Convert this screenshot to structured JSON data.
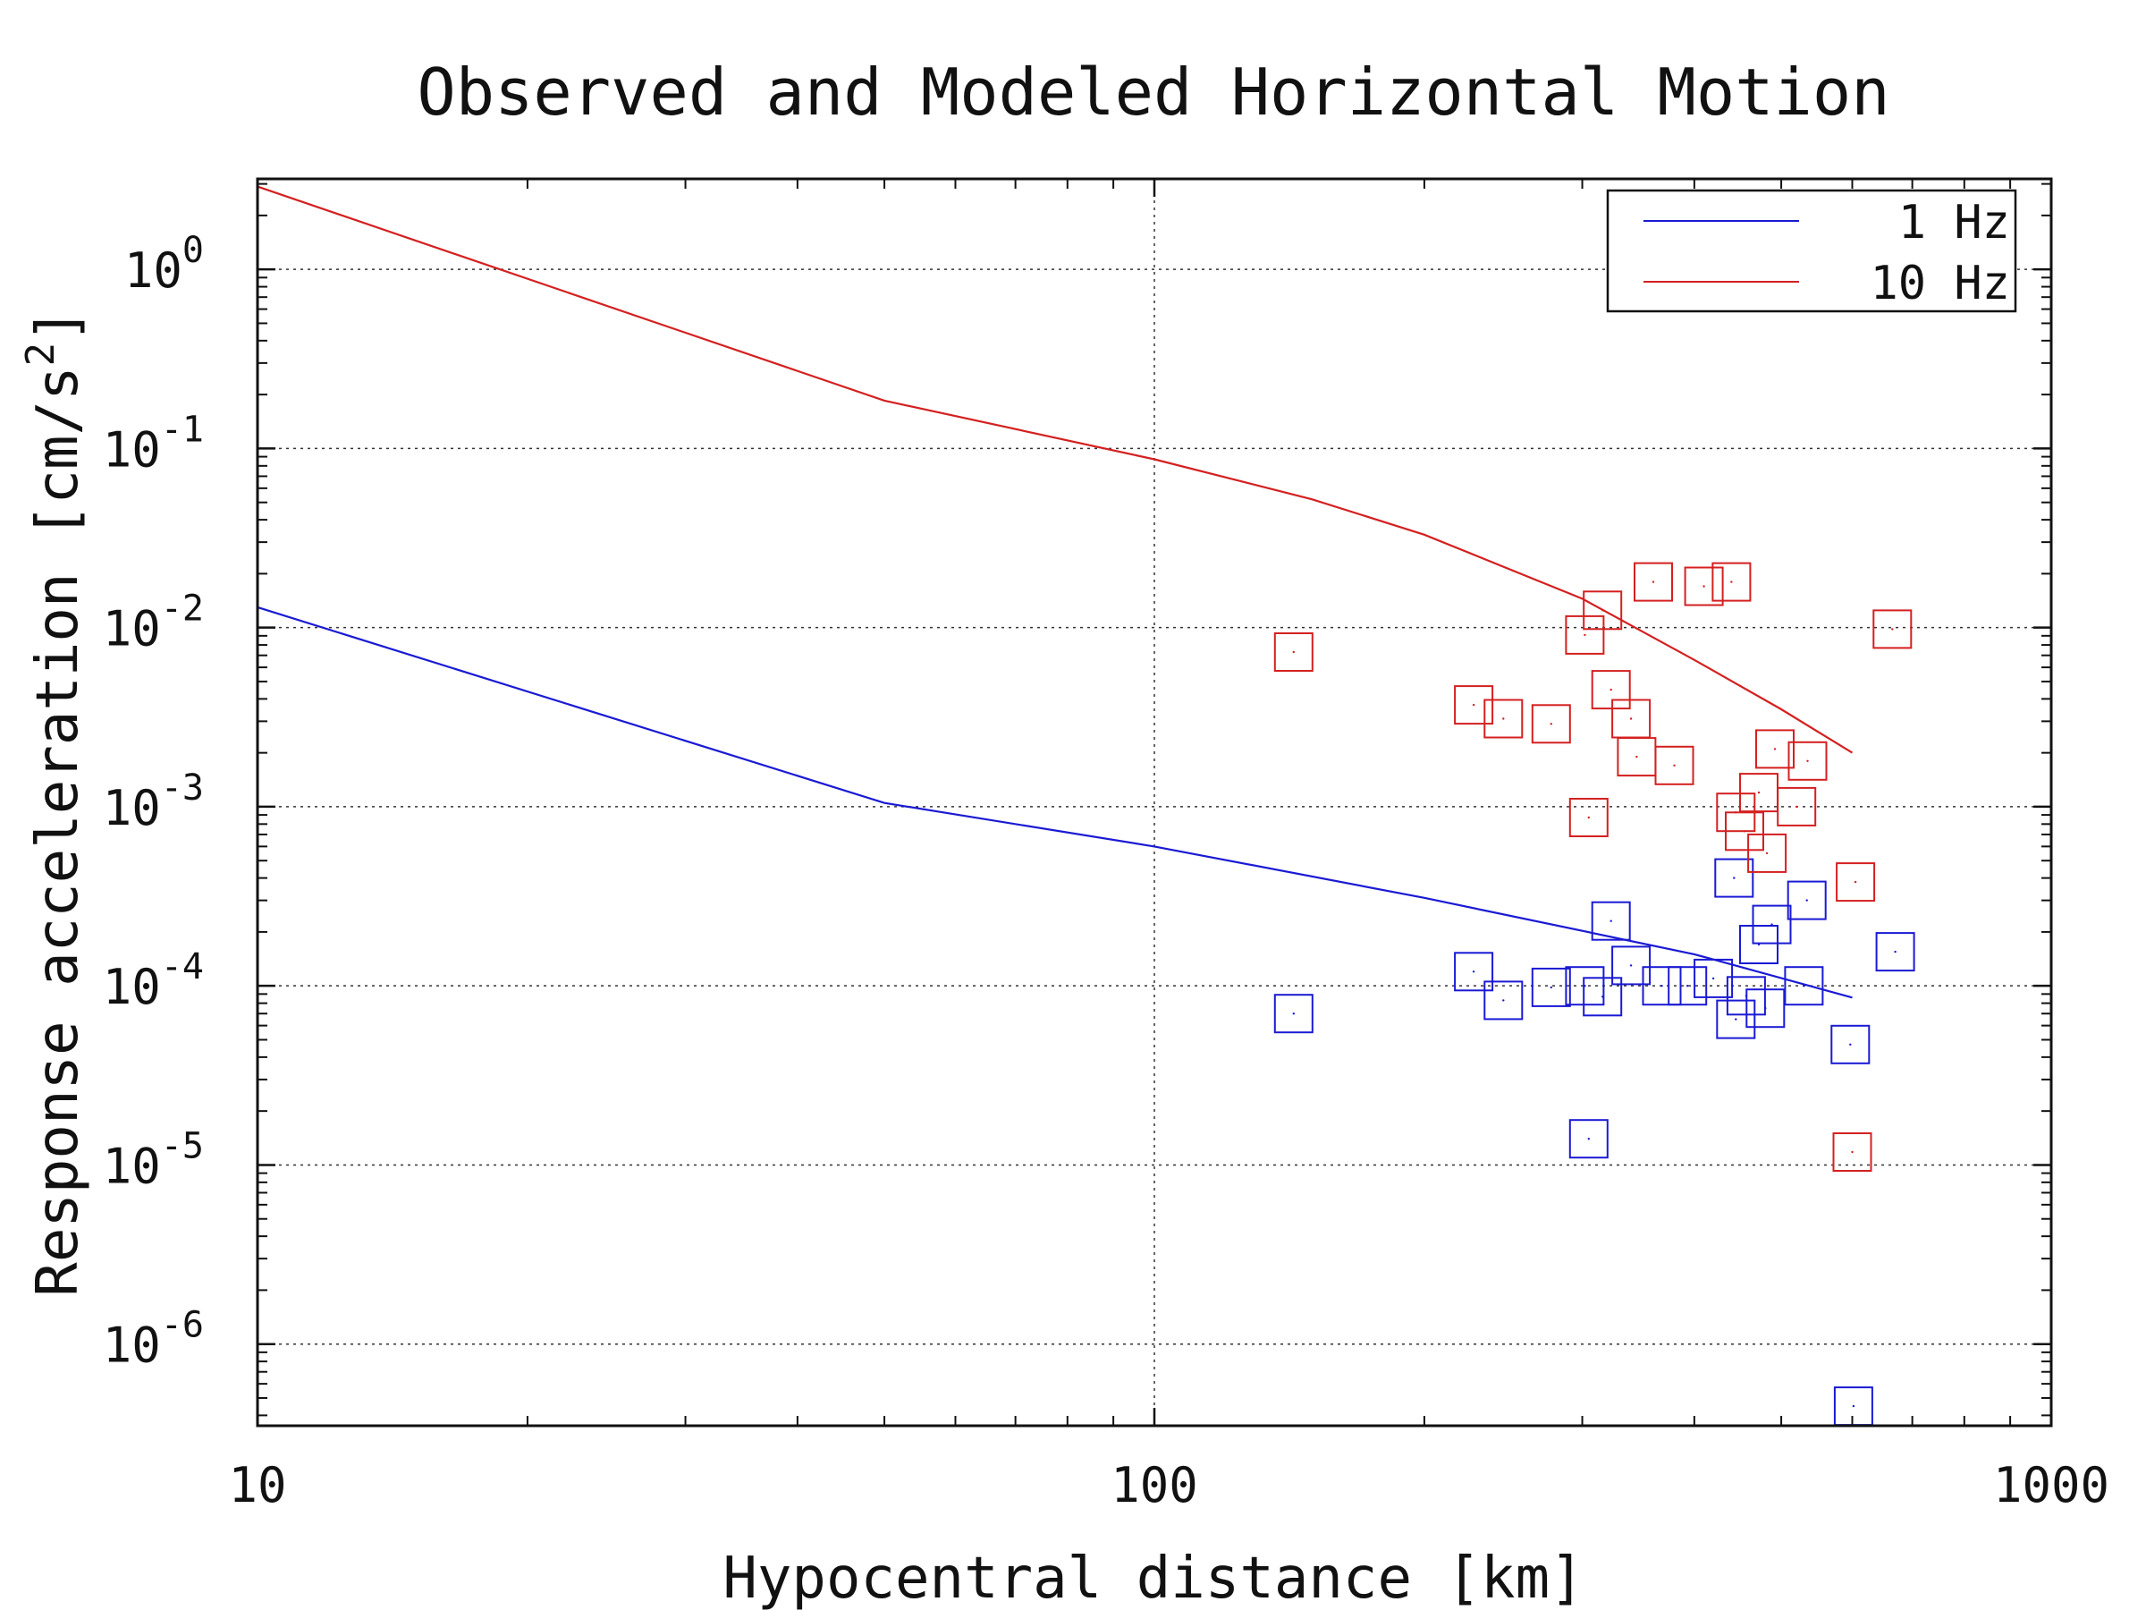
{
  "chart_data": {
    "type": "scatter",
    "title": "Observed and Modeled Horizontal Motion",
    "xlabel": "Hypocentral distance [km]",
    "ylabel_main": "Response acceleration [cm/s",
    "ylabel_sup": "2",
    "ylabel_end": "]",
    "x_scale": "log",
    "y_scale": "log",
    "xlim": [
      10,
      1000
    ],
    "ylim": [
      3.5e-07,
      3.2
    ],
    "grid": true,
    "legend_position": "top-right",
    "x_ticks": [
      {
        "value": 10,
        "label": "10"
      },
      {
        "value": 100,
        "label": "100"
      },
      {
        "value": 1000,
        "label": "1000"
      }
    ],
    "y_ticks": [
      {
        "value": 1,
        "base": "10",
        "exp": "0"
      },
      {
        "value": 0.1,
        "base": "10",
        "exp": "-1"
      },
      {
        "value": 0.01,
        "base": "10",
        "exp": "-2"
      },
      {
        "value": 0.001,
        "base": "10",
        "exp": "-3"
      },
      {
        "value": 0.0001,
        "base": "10",
        "exp": "-4"
      },
      {
        "value": 1e-05,
        "base": "10",
        "exp": "-5"
      },
      {
        "value": 1e-06,
        "base": "10",
        "exp": "-6"
      }
    ],
    "series": [
      {
        "name": "1 Hz",
        "color": "#1a1ad4",
        "model_line": [
          [
            10,
            0.013
          ],
          [
            50,
            0.00105
          ],
          [
            100,
            0.0006
          ],
          [
            200,
            0.00031
          ],
          [
            400,
            0.00015
          ],
          [
            600,
            8.6e-05
          ]
        ],
        "observed": [
          [
            143,
            7e-05
          ],
          [
            227,
            0.00012
          ],
          [
            245,
            8.3e-05
          ],
          [
            277,
            9.8e-05
          ],
          [
            302,
            0.0001
          ],
          [
            305,
            1.4e-05
          ],
          [
            316,
            8.7e-05
          ],
          [
            323,
            0.00023
          ],
          [
            340,
            0.00013
          ],
          [
            368,
            0.0001
          ],
          [
            393,
            0.0001
          ],
          [
            420,
            0.00011
          ],
          [
            443,
            0.0004
          ],
          [
            445,
            6.5e-05
          ],
          [
            457,
            8.8e-05
          ],
          [
            472,
            0.00017
          ],
          [
            488,
            0.00022
          ],
          [
            480,
            7.5e-05
          ],
          [
            530,
            0.0001
          ],
          [
            534,
            0.0003
          ],
          [
            597,
            4.7e-05
          ],
          [
            602,
            4.5e-07
          ],
          [
            670,
            0.000155
          ]
        ]
      },
      {
        "name": "10 Hz",
        "color": "#d42020",
        "model_line": [
          [
            10,
            2.9
          ],
          [
            50,
            0.185
          ],
          [
            100,
            0.087
          ],
          [
            150,
            0.052
          ],
          [
            200,
            0.033
          ],
          [
            300,
            0.0145
          ],
          [
            400,
            0.0066
          ],
          [
            500,
            0.0035
          ],
          [
            600,
            0.002
          ]
        ],
        "observed": [
          [
            143,
            0.0073
          ],
          [
            227,
            0.0037
          ],
          [
            245,
            0.0031
          ],
          [
            277,
            0.0029
          ],
          [
            302,
            0.0091
          ],
          [
            305,
            0.00087
          ],
          [
            316,
            0.0125
          ],
          [
            323,
            0.0045
          ],
          [
            340,
            0.0031
          ],
          [
            345,
            0.0019
          ],
          [
            360,
            0.018
          ],
          [
            380,
            0.0017
          ],
          [
            410,
            0.017
          ],
          [
            440,
            0.018
          ],
          [
            445,
            0.00093
          ],
          [
            455,
            0.00073
          ],
          [
            472,
            0.0012
          ],
          [
            482,
            0.00055
          ],
          [
            492,
            0.0021
          ],
          [
            520,
            0.001
          ],
          [
            535,
            0.0018
          ],
          [
            600,
            1.18e-05
          ],
          [
            605,
            0.00038
          ],
          [
            665,
            0.0098
          ]
        ]
      }
    ]
  }
}
